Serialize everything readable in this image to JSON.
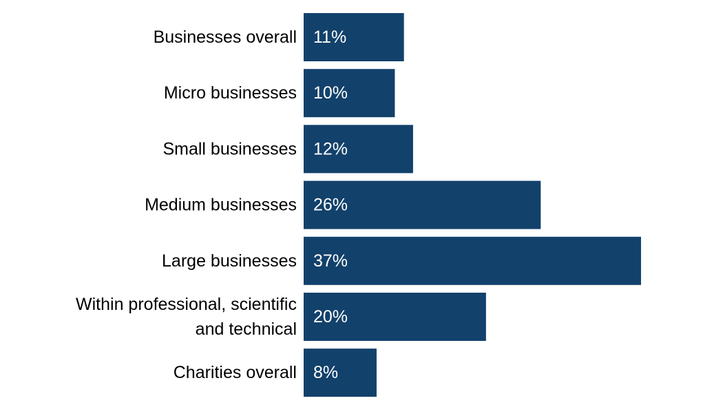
{
  "chart_data": {
    "type": "bar",
    "orientation": "horizontal",
    "title": "",
    "xlabel": "",
    "ylabel": "",
    "categories": [
      "Businesses overall",
      "Micro businesses",
      "Small businesses",
      "Medium businesses",
      "Large businesses",
      "Within professional, scientific and technical",
      "Charities overall"
    ],
    "values": [
      11,
      10,
      12,
      26,
      37,
      20,
      8
    ],
    "value_labels": [
      "11%",
      "10%",
      "12%",
      "26%",
      "37%",
      "20%",
      "8%"
    ],
    "xlim": [
      0,
      37
    ],
    "grid": false,
    "legend": "none",
    "bar_color": "#12416B",
    "value_label_color": "#FFFFFF",
    "category_label_color": "#000000"
  }
}
